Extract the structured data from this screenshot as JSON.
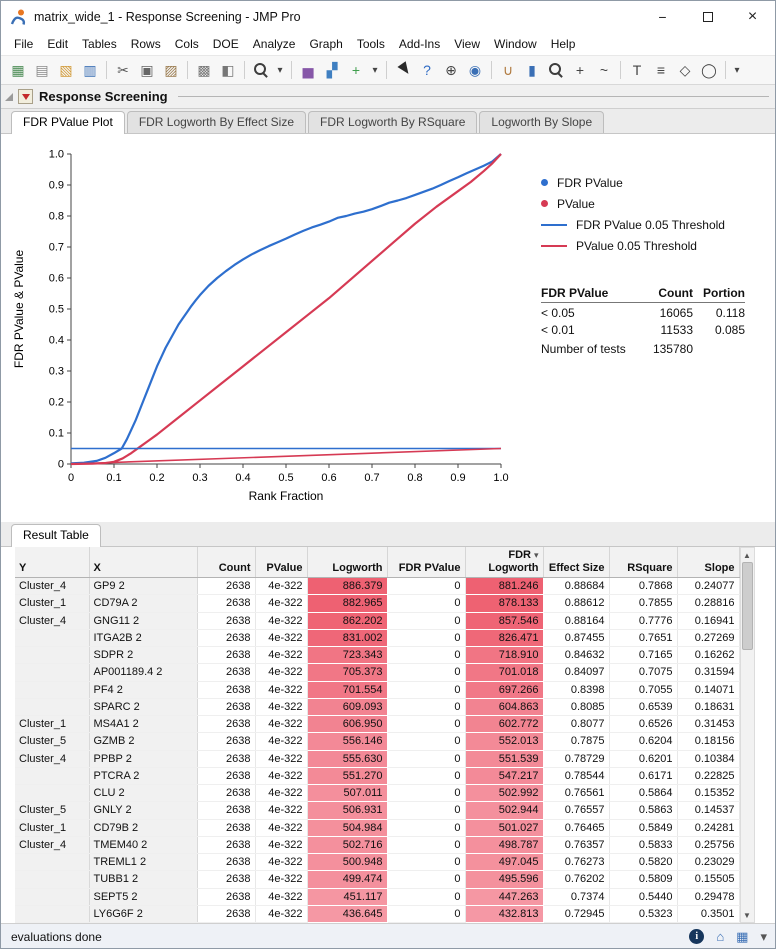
{
  "window": {
    "title": "matrix_wide_1 - Response Screening - JMP Pro",
    "minimize_glyph": "−",
    "close_glyph": "×"
  },
  "menu": {
    "items": [
      "File",
      "Edit",
      "Tables",
      "Rows",
      "Cols",
      "DOE",
      "Analyze",
      "Graph",
      "Tools",
      "Add-Ins",
      "View",
      "Window",
      "Help"
    ]
  },
  "toolbar": {
    "icons": [
      {
        "name": "new-data-table-icon",
        "glyph": "▦",
        "color": "#4c8c55"
      },
      {
        "name": "new-journal-icon",
        "glyph": "▤",
        "color": "#8a8a8a"
      },
      {
        "name": "open-icon",
        "glyph": "▧",
        "color": "#d29b3a"
      },
      {
        "name": "save-icon",
        "glyph": "▥",
        "color": "#3a6fb5"
      },
      {
        "type": "sep"
      },
      {
        "name": "cut-icon",
        "glyph": "✂",
        "color": "#555555"
      },
      {
        "name": "copy-icon",
        "glyph": "▣",
        "color": "#666666"
      },
      {
        "name": "paste-icon",
        "glyph": "▨",
        "color": "#997a4d"
      },
      {
        "type": "sep"
      },
      {
        "name": "select-rows-icon",
        "glyph": "▩",
        "color": "#777777"
      },
      {
        "name": "lock-icon",
        "glyph": "◧",
        "color": "#777777"
      },
      {
        "type": "sep"
      },
      {
        "name": "search-icon",
        "glyph": "",
        "css": "css-search"
      },
      {
        "name": "search-dropdown-icon",
        "glyph": "▾",
        "color": "#444444",
        "narrow": true
      },
      {
        "type": "sep"
      },
      {
        "name": "distribution-icon",
        "glyph": "▅",
        "color": "#8657a8"
      },
      {
        "name": "fit-y-by-x-icon",
        "glyph": "▞",
        "color": "#3f7fc1"
      },
      {
        "name": "graph-builder-icon",
        "glyph": "+",
        "color": "#3f9e4d"
      },
      {
        "name": "platform-dropdown-icon",
        "glyph": "▾",
        "color": "#444444",
        "narrow": true
      },
      {
        "type": "sep"
      },
      {
        "name": "cursor-icon",
        "glyph": "",
        "css": "css-cursor"
      },
      {
        "name": "help-icon",
        "glyph": "?",
        "color": "#2f6bc4"
      },
      {
        "name": "crosshair-icon",
        "glyph": "⊕",
        "color": "#444444"
      },
      {
        "name": "globe-icon",
        "glyph": "◉",
        "color": "#3a6fb5"
      },
      {
        "type": "sep"
      },
      {
        "name": "grabber-hand-icon",
        "glyph": "∪",
        "color": "#b07a3f"
      },
      {
        "name": "brush-icon",
        "glyph": "▮",
        "color": "#3a6fb5"
      },
      {
        "name": "magnifier-icon",
        "glyph": "",
        "css": "css-search"
      },
      {
        "name": "zoom-plus-icon",
        "glyph": "+",
        "color": "#444444"
      },
      {
        "name": "scribble-icon",
        "glyph": "~",
        "color": "#444444"
      },
      {
        "type": "sep"
      },
      {
        "name": "annotate-icon",
        "glyph": "T",
        "color": "#444444"
      },
      {
        "name": "layout-lines-icon",
        "glyph": "≡",
        "color": "#444444"
      },
      {
        "name": "polygon-icon",
        "glyph": "◇",
        "color": "#444444"
      },
      {
        "name": "oval-icon",
        "glyph": "◯",
        "color": "#444444"
      },
      {
        "type": "sep"
      },
      {
        "name": "toolbar-overflow-icon",
        "glyph": "▾",
        "color": "#444444",
        "narrow": true
      }
    ]
  },
  "report": {
    "title": "Response Screening"
  },
  "tabs": [
    {
      "label": "FDR PValue Plot",
      "active": true
    },
    {
      "label": "FDR Logworth By Effect Size",
      "active": false
    },
    {
      "label": "FDR Logworth By RSquare",
      "active": false
    },
    {
      "label": "Logworth By Slope",
      "active": false
    }
  ],
  "chart_data": {
    "type": "line",
    "xlabel": "Rank Fraction",
    "ylabel": "FDR PValue & PValue",
    "xlim": [
      0,
      1
    ],
    "ylim": [
      0,
      1
    ],
    "x_ticks": [
      "0",
      "0.1",
      "0.2",
      "0.3",
      "0.4",
      "0.5",
      "0.6",
      "0.7",
      "0.8",
      "0.9",
      "1.0"
    ],
    "y_ticks": [
      "0",
      "0.1",
      "0.2",
      "0.3",
      "0.4",
      "0.5",
      "0.6",
      "0.7",
      "0.8",
      "0.9",
      "1.0"
    ],
    "colors": {
      "blue": "#2e6fce",
      "red": "#d63a54"
    },
    "series": [
      {
        "name": "FDR PValue",
        "color": "#2e6fce",
        "width": 2.2,
        "points": [
          [
            0,
            0.002
          ],
          [
            0.03,
            0.004
          ],
          [
            0.06,
            0.01
          ],
          [
            0.08,
            0.02
          ],
          [
            0.1,
            0.035
          ],
          [
            0.118,
            0.05
          ],
          [
            0.13,
            0.08
          ],
          [
            0.14,
            0.11
          ],
          [
            0.15,
            0.14
          ],
          [
            0.16,
            0.175
          ],
          [
            0.17,
            0.21
          ],
          [
            0.18,
            0.245
          ],
          [
            0.19,
            0.28
          ],
          [
            0.2,
            0.315
          ],
          [
            0.21,
            0.345
          ],
          [
            0.22,
            0.375
          ],
          [
            0.23,
            0.4
          ],
          [
            0.24,
            0.425
          ],
          [
            0.25,
            0.45
          ],
          [
            0.26,
            0.47
          ],
          [
            0.27,
            0.49
          ],
          [
            0.28,
            0.51
          ],
          [
            0.29,
            0.528
          ],
          [
            0.3,
            0.545
          ],
          [
            0.32,
            0.575
          ],
          [
            0.34,
            0.6
          ],
          [
            0.36,
            0.622
          ],
          [
            0.38,
            0.642
          ],
          [
            0.4,
            0.66
          ],
          [
            0.42,
            0.676
          ],
          [
            0.44,
            0.69
          ],
          [
            0.46,
            0.703
          ],
          [
            0.48,
            0.715
          ],
          [
            0.5,
            0.727
          ],
          [
            0.52,
            0.74
          ],
          [
            0.54,
            0.752
          ],
          [
            0.56,
            0.763
          ],
          [
            0.58,
            0.772
          ],
          [
            0.6,
            0.782
          ],
          [
            0.62,
            0.794
          ],
          [
            0.64,
            0.8
          ],
          [
            0.66,
            0.808
          ],
          [
            0.68,
            0.814
          ],
          [
            0.7,
            0.822
          ],
          [
            0.72,
            0.832
          ],
          [
            0.74,
            0.843
          ],
          [
            0.76,
            0.85
          ],
          [
            0.78,
            0.858
          ],
          [
            0.8,
            0.868
          ],
          [
            0.82,
            0.878
          ],
          [
            0.84,
            0.888
          ],
          [
            0.86,
            0.9
          ],
          [
            0.88,
            0.913
          ],
          [
            0.9,
            0.925
          ],
          [
            0.92,
            0.938
          ],
          [
            0.94,
            0.95
          ],
          [
            0.96,
            0.962
          ],
          [
            0.98,
            0.976
          ],
          [
            1,
            1
          ]
        ]
      },
      {
        "name": "PValue",
        "color": "#d63a54",
        "width": 2.2,
        "points": [
          [
            0,
            0
          ],
          [
            0.05,
            0.001
          ],
          [
            0.08,
            0.003
          ],
          [
            0.1,
            0.007
          ],
          [
            0.12,
            0.018
          ],
          [
            0.14,
            0.035
          ],
          [
            0.16,
            0.055
          ],
          [
            0.18,
            0.075
          ],
          [
            0.2,
            0.095
          ],
          [
            0.25,
            0.15
          ],
          [
            0.3,
            0.205
          ],
          [
            0.35,
            0.26
          ],
          [
            0.4,
            0.315
          ],
          [
            0.45,
            0.37
          ],
          [
            0.5,
            0.425
          ],
          [
            0.55,
            0.48
          ],
          [
            0.6,
            0.535
          ],
          [
            0.65,
            0.595
          ],
          [
            0.7,
            0.655
          ],
          [
            0.75,
            0.715
          ],
          [
            0.8,
            0.775
          ],
          [
            0.85,
            0.83
          ],
          [
            0.9,
            0.88
          ],
          [
            0.93,
            0.91
          ],
          [
            0.96,
            0.945
          ],
          [
            0.98,
            0.97
          ],
          [
            1,
            1
          ]
        ]
      },
      {
        "name": "FDR PValue 0.05 Threshold",
        "color": "#2e6fce",
        "width": 1.6,
        "points": [
          [
            0,
            0.05
          ],
          [
            1,
            0.05
          ]
        ]
      },
      {
        "name": "PValue 0.05 Threshold",
        "color": "#d63a54",
        "width": 1.6,
        "points": [
          [
            0,
            0
          ],
          [
            1,
            0.05
          ]
        ]
      }
    ],
    "legend": [
      {
        "label": "FDR PValue",
        "marker": "dot",
        "color": "#2e6fce"
      },
      {
        "label": "PValue",
        "marker": "dot",
        "color": "#d63a54"
      },
      {
        "label": "FDR PValue 0.05 Threshold",
        "marker": "line",
        "color": "#2e6fce"
      },
      {
        "label": "PValue 0.05 Threshold",
        "marker": "line",
        "color": "#d63a54"
      }
    ]
  },
  "summary_table": {
    "headers": [
      "FDR PValue",
      "Count",
      "Portion"
    ],
    "rows": [
      [
        "< 0.05",
        "16065",
        "0.118"
      ],
      [
        "< 0.01",
        "11533",
        "0.085"
      ]
    ],
    "footer_label": "Number of tests",
    "footer_value": "135780"
  },
  "result": {
    "tab_label": "Result Table",
    "highlight_color_high": "#ee5f70",
    "highlight_color_low": "#f59aa6",
    "columns": [
      {
        "key": "y",
        "label_lines": [
          "Y"
        ],
        "align": "left"
      },
      {
        "key": "x",
        "label_lines": [
          "X"
        ],
        "align": "left"
      },
      {
        "key": "count",
        "label_lines": [
          "Count"
        ],
        "align": "right"
      },
      {
        "key": "pvalue",
        "label_lines": [
          "PValue"
        ],
        "align": "right"
      },
      {
        "key": "logworth",
        "label_lines": [
          "Logworth"
        ],
        "align": "right",
        "highlight": true
      },
      {
        "key": "fdr_pvalue",
        "label_lines": [
          "FDR PValue"
        ],
        "align": "right"
      },
      {
        "key": "fdr_logworth",
        "label_lines": [
          "FDR",
          "Logworth"
        ],
        "align": "right",
        "highlight": true,
        "sorted": true
      },
      {
        "key": "effect_size",
        "label_lines": [
          "Effect Size"
        ],
        "align": "right"
      },
      {
        "key": "rsquare",
        "label_lines": [
          "RSquare"
        ],
        "align": "right"
      },
      {
        "key": "slope",
        "label_lines": [
          "Slope"
        ],
        "align": "right"
      }
    ],
    "rows": [
      {
        "y": "Cluster_4",
        "x": "GP9 2",
        "count": "2638",
        "pvalue": "4e-322",
        "logworth": "886.379",
        "fdr_pvalue": "0",
        "fdr_logworth": "881.246",
        "effect_size": "0.88684",
        "rsquare": "0.7868",
        "slope": "0.24077"
      },
      {
        "y": "Cluster_1",
        "x": "CD79A 2",
        "count": "2638",
        "pvalue": "4e-322",
        "logworth": "882.965",
        "fdr_pvalue": "0",
        "fdr_logworth": "878.133",
        "effect_size": "0.88612",
        "rsquare": "0.7855",
        "slope": "0.28816"
      },
      {
        "y": "Cluster_4",
        "x": "GNG11 2",
        "count": "2638",
        "pvalue": "4e-322",
        "logworth": "862.202",
        "fdr_pvalue": "0",
        "fdr_logworth": "857.546",
        "effect_size": "0.88164",
        "rsquare": "0.7776",
        "slope": "0.16941"
      },
      {
        "y": "",
        "x": "ITGA2B 2",
        "count": "2638",
        "pvalue": "4e-322",
        "logworth": "831.002",
        "fdr_pvalue": "0",
        "fdr_logworth": "826.471",
        "effect_size": "0.87455",
        "rsquare": "0.7651",
        "slope": "0.27269"
      },
      {
        "y": "",
        "x": "SDPR 2",
        "count": "2638",
        "pvalue": "4e-322",
        "logworth": "723.343",
        "fdr_pvalue": "0",
        "fdr_logworth": "718.910",
        "effect_size": "0.84632",
        "rsquare": "0.7165",
        "slope": "0.16262"
      },
      {
        "y": "",
        "x": "AP001189.4 2",
        "count": "2638",
        "pvalue": "4e-322",
        "logworth": "705.373",
        "fdr_pvalue": "0",
        "fdr_logworth": "701.018",
        "effect_size": "0.84097",
        "rsquare": "0.7075",
        "slope": "0.31594"
      },
      {
        "y": "",
        "x": "PF4 2",
        "count": "2638",
        "pvalue": "4e-322",
        "logworth": "701.554",
        "fdr_pvalue": "0",
        "fdr_logworth": "697.266",
        "effect_size": "0.8398",
        "rsquare": "0.7055",
        "slope": "0.14071"
      },
      {
        "y": "",
        "x": "SPARC 2",
        "count": "2638",
        "pvalue": "4e-322",
        "logworth": "609.093",
        "fdr_pvalue": "0",
        "fdr_logworth": "604.863",
        "effect_size": "0.8085",
        "rsquare": "0.6539",
        "slope": "0.18631"
      },
      {
        "y": "Cluster_1",
        "x": "MS4A1 2",
        "count": "2638",
        "pvalue": "4e-322",
        "logworth": "606.950",
        "fdr_pvalue": "0",
        "fdr_logworth": "602.772",
        "effect_size": "0.8077",
        "rsquare": "0.6526",
        "slope": "0.31453"
      },
      {
        "y": "Cluster_5",
        "x": "GZMB 2",
        "count": "2638",
        "pvalue": "4e-322",
        "logworth": "556.146",
        "fdr_pvalue": "0",
        "fdr_logworth": "552.013",
        "effect_size": "0.7875",
        "rsquare": "0.6204",
        "slope": "0.18156"
      },
      {
        "y": "Cluster_4",
        "x": "PPBP 2",
        "count": "2638",
        "pvalue": "4e-322",
        "logworth": "555.630",
        "fdr_pvalue": "0",
        "fdr_logworth": "551.539",
        "effect_size": "0.78729",
        "rsquare": "0.6201",
        "slope": "0.10384"
      },
      {
        "y": "",
        "x": "PTCRA 2",
        "count": "2638",
        "pvalue": "4e-322",
        "logworth": "551.270",
        "fdr_pvalue": "0",
        "fdr_logworth": "547.217",
        "effect_size": "0.78544",
        "rsquare": "0.6171",
        "slope": "0.22825"
      },
      {
        "y": "",
        "x": "CLU 2",
        "count": "2638",
        "pvalue": "4e-322",
        "logworth": "507.011",
        "fdr_pvalue": "0",
        "fdr_logworth": "502.992",
        "effect_size": "0.76561",
        "rsquare": "0.5864",
        "slope": "0.15352"
      },
      {
        "y": "Cluster_5",
        "x": "GNLY 2",
        "count": "2638",
        "pvalue": "4e-322",
        "logworth": "506.931",
        "fdr_pvalue": "0",
        "fdr_logworth": "502.944",
        "effect_size": "0.76557",
        "rsquare": "0.5863",
        "slope": "0.14537"
      },
      {
        "y": "Cluster_1",
        "x": "CD79B 2",
        "count": "2638",
        "pvalue": "4e-322",
        "logworth": "504.984",
        "fdr_pvalue": "0",
        "fdr_logworth": "501.027",
        "effect_size": "0.76465",
        "rsquare": "0.5849",
        "slope": "0.24281"
      },
      {
        "y": "Cluster_4",
        "x": "TMEM40 2",
        "count": "2638",
        "pvalue": "4e-322",
        "logworth": "502.716",
        "fdr_pvalue": "0",
        "fdr_logworth": "498.787",
        "effect_size": "0.76357",
        "rsquare": "0.5833",
        "slope": "0.25756"
      },
      {
        "y": "",
        "x": "TREML1 2",
        "count": "2638",
        "pvalue": "4e-322",
        "logworth": "500.948",
        "fdr_pvalue": "0",
        "fdr_logworth": "497.045",
        "effect_size": "0.76273",
        "rsquare": "0.5820",
        "slope": "0.23029"
      },
      {
        "y": "",
        "x": "TUBB1 2",
        "count": "2638",
        "pvalue": "4e-322",
        "logworth": "499.474",
        "fdr_pvalue": "0",
        "fdr_logworth": "495.596",
        "effect_size": "0.76202",
        "rsquare": "0.5809",
        "slope": "0.15505"
      },
      {
        "y": "",
        "x": "SEPT5 2",
        "count": "2638",
        "pvalue": "4e-322",
        "logworth": "451.117",
        "fdr_pvalue": "0",
        "fdr_logworth": "447.263",
        "effect_size": "0.7374",
        "rsquare": "0.5440",
        "slope": "0.29478"
      },
      {
        "y": "",
        "x": "LY6G6F 2",
        "count": "2638",
        "pvalue": "4e-322",
        "logworth": "436.645",
        "fdr_pvalue": "0",
        "fdr_logworth": "432.813",
        "effect_size": "0.72945",
        "rsquare": "0.5323",
        "slope": "0.3501"
      }
    ]
  },
  "statusbar": {
    "text": "evaluations done",
    "icons": [
      {
        "name": "info-icon",
        "glyph": "i",
        "badge": true
      },
      {
        "name": "home-window-icon",
        "glyph": "⌂",
        "color": "#3a6fb5"
      },
      {
        "name": "data-table-icon",
        "glyph": "▦",
        "color": "#3a6fb5"
      },
      {
        "name": "status-dropdown-icon",
        "glyph": "▾",
        "color": "#555555"
      }
    ]
  }
}
